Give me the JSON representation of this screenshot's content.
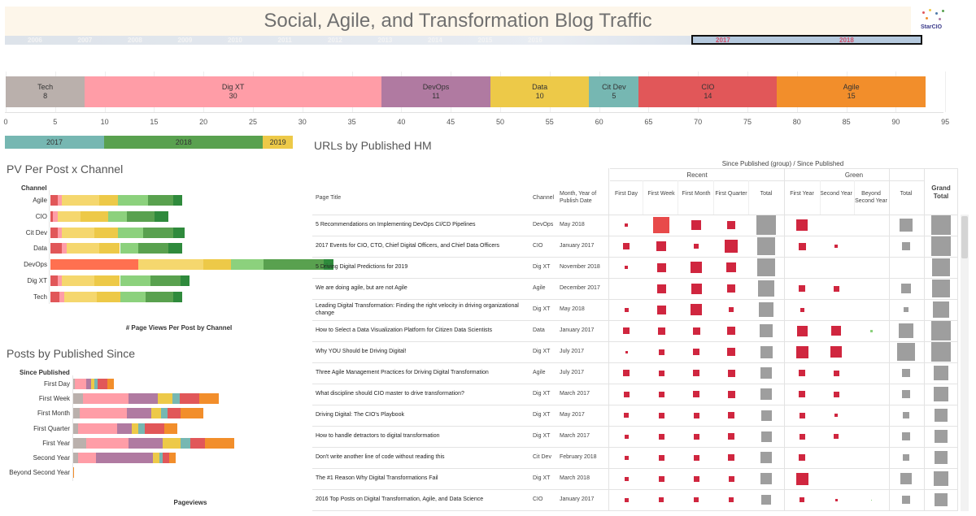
{
  "header": {
    "title": "Social, Agile, and Transformation Blog Traffic",
    "logo_text": "StarCIO"
  },
  "timeline": {
    "years": [
      "2006",
      "2007",
      "2008",
      "2009",
      "2010",
      "2011",
      "2012",
      "2013",
      "2014",
      "2015",
      "2016",
      "2017",
      "2018"
    ],
    "selected": [
      "2017",
      "2018"
    ]
  },
  "colors": {
    "Tech": "#bab0ac",
    "Dig XT": "#ff9da7",
    "DevOps": "#b07aa1",
    "Data": "#edc948",
    "Cit Dev": "#76b7b2",
    "CIO": "#e15759",
    "Agile": "#f28e2b",
    "red_mark": "#d0263f",
    "grey_mark": "#9e9e9e",
    "y2017": "#76b7b2",
    "y2018": "#59a14f",
    "y2019": "#edc948"
  },
  "chart_data": [
    {
      "type": "bar",
      "name_id": "posts-by-channel",
      "orientation": "horizontal-stacked",
      "series": [
        {
          "name": "Tech",
          "label": "Tech",
          "value": 8,
          "value_label": "8"
        },
        {
          "name": "Dig XT",
          "label": "Dig XT",
          "value": 30,
          "value_label": "30"
        },
        {
          "name": "DevOps",
          "label": "DevOps",
          "value": 11,
          "value_label": "11"
        },
        {
          "name": "Data",
          "label": "Data",
          "value": 10,
          "value_label": "10"
        },
        {
          "name": "Cit Dev",
          "label": "Cit Dev",
          "value": 5,
          "value_label": "5"
        },
        {
          "name": "CIO",
          "label": "CIO",
          "value": 14,
          "value_label": "14"
        },
        {
          "name": "Agile",
          "label": "Agile",
          "value": 15,
          "value_label": "15"
        }
      ],
      "x_ticks": [
        "0",
        "5",
        "10",
        "15",
        "20",
        "25",
        "30",
        "35",
        "40",
        "45",
        "50",
        "55",
        "60",
        "65",
        "70",
        "75",
        "80",
        "85",
        "90",
        "95"
      ],
      "xlim": [
        0,
        95
      ]
    },
    {
      "type": "bar",
      "name_id": "posts-by-year",
      "orientation": "horizontal-stacked",
      "series": [
        {
          "name": "2017",
          "label": "2017",
          "value": 10
        },
        {
          "name": "2018",
          "label": "2018",
          "value": 16
        },
        {
          "name": "2019",
          "label": "2019",
          "value": 3
        }
      ]
    },
    {
      "type": "bar",
      "name_id": "pv-per-post-by-channel",
      "title": "PV Per Post x Channel",
      "ylabel": "Channel",
      "xlabel": "# Page Views Per Post by Channel",
      "categories": [
        "Agile",
        "CIO",
        "Cit Dev",
        "Data",
        "DevOps",
        "Dig XT",
        "Tech"
      ],
      "segment_colors": [
        "#e15759",
        "#ff9da7",
        "#f5d76e",
        "#edc948",
        "#8cd17d",
        "#59a14f",
        "#2f8a3c"
      ],
      "rows": [
        [
          3,
          2,
          16,
          8,
          13,
          11,
          4
        ],
        [
          1,
          2,
          10,
          12,
          8,
          12,
          6
        ],
        [
          3,
          2,
          14,
          10,
          11,
          13,
          5
        ],
        [
          5,
          2,
          14,
          9,
          8,
          13,
          6
        ],
        [
          38,
          0,
          28,
          12,
          14,
          26,
          4
        ],
        [
          3,
          2,
          14,
          11,
          13,
          13,
          4
        ],
        [
          4,
          2,
          14,
          10,
          11,
          12,
          4
        ]
      ]
    },
    {
      "type": "bar",
      "name_id": "posts-by-published-since",
      "title": "Posts by Published Since",
      "ylabel": "Since Published",
      "xlabel": "Pageviews",
      "categories": [
        "First Day",
        "First Week",
        "First Month",
        "First Quarter",
        "First Year",
        "Second Year",
        "Beyond Second Year"
      ],
      "series_names": [
        "Tech",
        "Dig XT",
        "DevOps",
        "Data",
        "Cit Dev",
        "CIO",
        "Agile"
      ],
      "rows": [
        [
          2,
          14,
          6,
          4,
          4,
          12,
          8
        ],
        [
          12,
          56,
          36,
          18,
          9,
          24,
          24
        ],
        [
          8,
          58,
          30,
          12,
          8,
          16,
          28
        ],
        [
          6,
          48,
          18,
          8,
          8,
          24,
          16
        ],
        [
          16,
          52,
          42,
          22,
          12,
          18,
          36
        ],
        [
          6,
          22,
          70,
          8,
          4,
          8,
          8
        ],
        [
          0,
          0,
          0,
          0,
          0,
          0,
          1
        ]
      ]
    }
  ],
  "table": {
    "title": "URLs by Published HM",
    "group_header": "Since Published (group)  /  Since Published",
    "group_recent": "Recent",
    "group_green": "Green",
    "col_page_title": "Page Title",
    "col_channel": "Channel",
    "col_month": "Month, Year of Publish Date",
    "col_first_day": "First Day",
    "col_first_week": "First Week",
    "col_first_month": "First Month",
    "col_first_quarter": "First Quarter",
    "col_total": "Total",
    "col_first_year": "First Year",
    "col_second_year": "Second Year",
    "col_beyond": "Beyond Second Year",
    "col_total2": "Total",
    "col_grand_total": "Grand Total",
    "rows": [
      {
        "title": "5 Recommendations on Implementing DevOps CI/CD Pipelines",
        "channel": "DevOps",
        "date": "May 2018",
        "cells": [
          4,
          20,
          12,
          10,
          28,
          14,
          0,
          0,
          16,
          34
        ]
      },
      {
        "title": "2017 Events for CIO, CTO, Chief Digital Officers, and Chief Data Officers",
        "channel": "CIO",
        "date": "January 2017",
        "cells": [
          8,
          12,
          6,
          16,
          22,
          9,
          4,
          0,
          10,
          26
        ]
      },
      {
        "title": "5 Driving Digital Predictions for 2019",
        "channel": "Dig XT",
        "date": "November 2018",
        "cells": [
          4,
          11,
          14,
          12,
          22,
          0,
          0,
          0,
          0,
          22
        ]
      },
      {
        "title": "We are doing agile, but are not Agile",
        "channel": "Agile",
        "date": "December 2017",
        "cells": [
          0,
          11,
          13,
          10,
          20,
          8,
          7,
          0,
          12,
          22
        ]
      },
      {
        "title": "Leading Digital Transformation: Finding the right velocity in driving organizational change",
        "channel": "Dig XT",
        "date": "May 2018",
        "cells": [
          5,
          11,
          14,
          6,
          18,
          5,
          0,
          0,
          6,
          20
        ]
      },
      {
        "title": "How to Select a Data Visualization Platform for Citizen Data Scientists",
        "channel": "Data",
        "date": "January 2017",
        "cells": [
          8,
          9,
          9,
          10,
          16,
          13,
          12,
          3,
          18,
          26
        ]
      },
      {
        "title": "Why YOU Should be Driving Digital!",
        "channel": "Dig XT",
        "date": "July 2017",
        "cells": [
          3,
          7,
          8,
          10,
          15,
          15,
          14,
          0,
          22,
          26
        ]
      },
      {
        "title": "Three Agile Management Practices for Driving Digital Transformation",
        "channel": "Agile",
        "date": "July 2017",
        "cells": [
          8,
          7,
          8,
          9,
          14,
          8,
          7,
          0,
          10,
          18
        ]
      },
      {
        "title": "What discipline should CIO master to drive transformation?",
        "channel": "Dig XT",
        "date": "March 2017",
        "cells": [
          7,
          7,
          8,
          9,
          14,
          8,
          7,
          0,
          10,
          18
        ]
      },
      {
        "title": "Driving Digital: The CIO's Playbook",
        "channel": "Dig XT",
        "date": "May 2017",
        "cells": [
          6,
          7,
          7,
          8,
          13,
          7,
          4,
          0,
          8,
          16
        ]
      },
      {
        "title": "How to handle detractors to digital transformation",
        "channel": "Dig XT",
        "date": "March 2017",
        "cells": [
          5,
          7,
          7,
          8,
          13,
          7,
          6,
          0,
          10,
          16
        ]
      },
      {
        "title": "Don't write another line of code without reading this",
        "channel": "Cit Dev",
        "date": "February 2018",
        "cells": [
          5,
          7,
          7,
          8,
          14,
          8,
          0,
          0,
          8,
          16
        ]
      },
      {
        "title": "The #1 Reason Why Digital Transformations Fail",
        "channel": "Dig XT",
        "date": "March 2018",
        "cells": [
          5,
          7,
          7,
          7,
          14,
          15,
          0,
          0,
          14,
          18
        ]
      },
      {
        "title": "2016 Top Posts on Digital Transformation, Agile, and Data Science",
        "channel": "CIO",
        "date": "January 2017",
        "cells": [
          5,
          6,
          6,
          6,
          12,
          6,
          3,
          1,
          10,
          16
        ]
      }
    ]
  }
}
